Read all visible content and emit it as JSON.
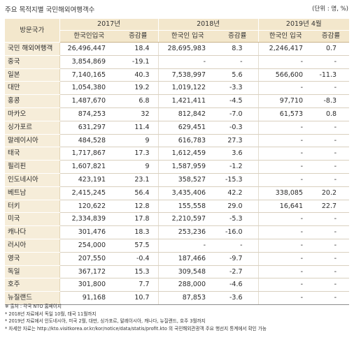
{
  "title": "주요 목적지별 국민해외여행객수",
  "unit": "(단위 : 명, %)",
  "header": {
    "country": "방문국가",
    "years": [
      "2017년",
      "2018년",
      "2019년 4월"
    ],
    "sub": [
      "한국인입국",
      "증감률",
      "한국인 입국",
      "증감률",
      "한국인 입국",
      "증감률"
    ]
  },
  "rows": [
    {
      "country": "국민 해외여행객",
      "v17": "26,496,447",
      "g17": "18.4",
      "v18": "28,695,983",
      "g18": "8.3",
      "v19": "2,246,417",
      "g19": "0.7"
    },
    {
      "country": "중국",
      "v17": "3,854,869",
      "g17": "-19.1",
      "v18": "-",
      "g18": "-",
      "v19": "-",
      "g19": "-"
    },
    {
      "country": "일본",
      "v17": "7,140,165",
      "g17": "40.3",
      "v18": "7,538,997",
      "g18": "5.6",
      "v19": "566,600",
      "g19": "-11.3"
    },
    {
      "country": "대만",
      "v17": "1,054,380",
      "g17": "19.2",
      "v18": "1,019,122",
      "g18": "-3.3",
      "v19": "-",
      "g19": "-"
    },
    {
      "country": "홍콩",
      "v17": "1,487,670",
      "g17": "6.8",
      "v18": "1,421,411",
      "g18": "-4.5",
      "v19": "97,710",
      "g19": "-8.3"
    },
    {
      "country": "마카오",
      "v17": "874,253",
      "g17": "32",
      "v18": "812,842",
      "g18": "-7.0",
      "v19": "61,573",
      "g19": "0.8"
    },
    {
      "country": "싱가포르",
      "v17": "631,297",
      "g17": "11.4",
      "v18": "629,451",
      "g18": "-0.3",
      "v19": "-",
      "g19": "-"
    },
    {
      "country": "말레이시아",
      "v17": "484,528",
      "g17": "9",
      "v18": "616,783",
      "g18": "27.3",
      "v19": "-",
      "g19": "-"
    },
    {
      "country": "태국",
      "v17": "1,717,867",
      "g17": "17.3",
      "v18": "1,612,459",
      "g18": "3.6",
      "v19": "-",
      "g19": "-"
    },
    {
      "country": "필리핀",
      "v17": "1,607,821",
      "g17": "9",
      "v18": "1,587,959",
      "g18": "-1.2",
      "v19": "-",
      "g19": "-"
    },
    {
      "country": "인도네시아",
      "v17": "423,191",
      "g17": "23.1",
      "v18": "358,527",
      "g18": "-15.3",
      "v19": "-",
      "g19": "-"
    },
    {
      "country": "베트남",
      "v17": "2,415,245",
      "g17": "56.4",
      "v18": "3,435,406",
      "g18": "42.2",
      "v19": "338,085",
      "g19": "20.2"
    },
    {
      "country": "터키",
      "v17": "120,622",
      "g17": "12.8",
      "v18": "155,558",
      "g18": "29.0",
      "v19": "16,641",
      "g19": "22.7"
    },
    {
      "country": "미국",
      "v17": "2,334,839",
      "g17": "17.8",
      "v18": "2,210,597",
      "g18": "-5.3",
      "v19": "-",
      "g19": "-"
    },
    {
      "country": "캐나다",
      "v17": "301,476",
      "g17": "18.3",
      "v18": "253,236",
      "g18": "-16.0",
      "v19": "-",
      "g19": "-"
    },
    {
      "country": "러시아",
      "v17": "254,000",
      "g17": "57.5",
      "v18": "-",
      "g18": "-",
      "v19": "-",
      "g19": "-"
    },
    {
      "country": "영국",
      "v17": "207,550",
      "g17": "-0.4",
      "v18": "187,466",
      "g18": "-9.7",
      "v19": "-",
      "g19": "-"
    },
    {
      "country": "독일",
      "v17": "367,172",
      "g17": "15.3",
      "v18": "309,548",
      "g18": "-2.7",
      "v19": "-",
      "g19": "-"
    },
    {
      "country": "호주",
      "v17": "301,800",
      "g17": "7.7",
      "v18": "288,000",
      "g18": "-4.6",
      "v19": "-",
      "g19": "-"
    },
    {
      "country": "뉴질랜드",
      "v17": "91,168",
      "g17": "10.7",
      "v18": "87,853",
      "g18": "-3.6",
      "v19": "-",
      "g19": "-"
    }
  ],
  "notes": [
    "※ 출처 : 각국 NTO 홈페이지",
    "* 2018년 자료에서 독일 10월, 태국 11월까지",
    "* 2019년 자료에서 인도네시아, 미국 2월, 대만, 싱가포르, 말레이시아, 캐나다, 뉴질랜드, 호주 3월까지",
    "* 자세한 자료는 http://kto.visitkorea.or.kr/kor/notice/data/statis/profit.kto 의 국민해외관광객 주요 행선지 통계에서 확인 가능"
  ]
}
